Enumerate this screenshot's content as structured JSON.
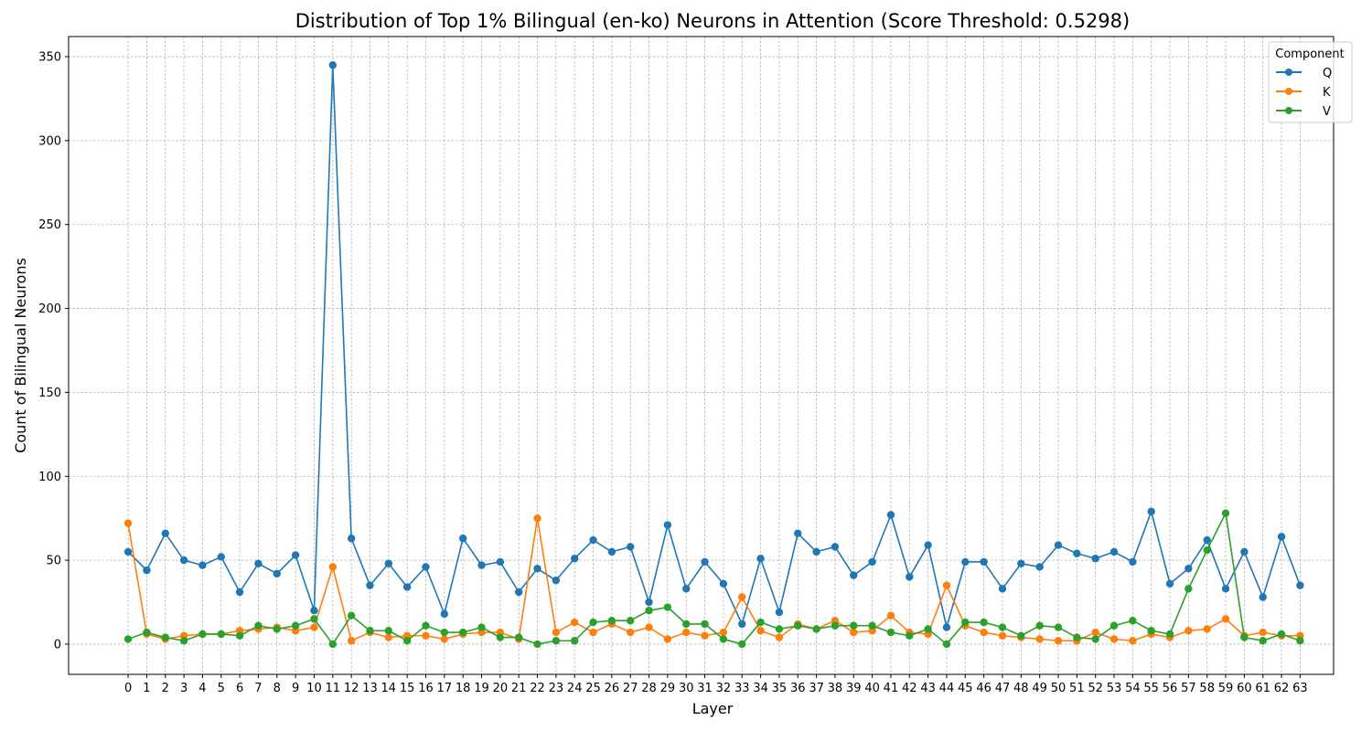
{
  "chart_data": {
    "type": "line",
    "title": "Distribution of Top 1% Bilingual (en-ko) Neurons in Attention (Score Threshold: 0.5298)",
    "xlabel": "Layer",
    "ylabel": "Count of Bilingual Neurons",
    "ylim": [
      -18,
      362
    ],
    "yticks": [
      0,
      50,
      100,
      150,
      200,
      250,
      300,
      350
    ],
    "grid": true,
    "legend": {
      "title": "Component",
      "position": "top-right"
    },
    "x": [
      0,
      1,
      2,
      3,
      4,
      5,
      6,
      7,
      8,
      9,
      10,
      11,
      12,
      13,
      14,
      15,
      16,
      17,
      18,
      19,
      20,
      21,
      22,
      23,
      24,
      25,
      26,
      27,
      28,
      29,
      30,
      31,
      32,
      33,
      34,
      35,
      36,
      37,
      38,
      39,
      40,
      41,
      42,
      43,
      44,
      45,
      46,
      47,
      48,
      49,
      50,
      51,
      52,
      53,
      54,
      55,
      56,
      57,
      58,
      59,
      60,
      61,
      62,
      63
    ],
    "series": [
      {
        "name": "Q",
        "color": "#1f77b4",
        "values": [
          55,
          44,
          66,
          50,
          47,
          52,
          31,
          48,
          42,
          53,
          20,
          345,
          63,
          35,
          48,
          34,
          46,
          18,
          63,
          47,
          49,
          31,
          45,
          38,
          51,
          62,
          55,
          58,
          25,
          71,
          33,
          49,
          36,
          12,
          51,
          19,
          66,
          55,
          58,
          41,
          49,
          77,
          40,
          59,
          10,
          49,
          49,
          33,
          48,
          46,
          59,
          54,
          51,
          55,
          49,
          79,
          36,
          45,
          62,
          33,
          55,
          28,
          64,
          35
        ]
      },
      {
        "name": "K",
        "color": "#ff7f0e",
        "values": [
          72,
          6,
          3,
          5,
          6,
          6,
          8,
          9,
          10,
          8,
          10,
          46,
          2,
          7,
          4,
          5,
          5,
          3,
          6,
          7,
          7,
          3,
          75,
          7,
          13,
          7,
          12,
          7,
          10,
          3,
          7,
          5,
          7,
          28,
          8,
          4,
          12,
          9,
          14,
          7,
          8,
          17,
          7,
          6,
          35,
          11,
          7,
          5,
          4,
          3,
          2,
          2,
          7,
          3,
          2,
          6,
          4,
          8,
          9,
          15,
          5,
          7,
          5,
          5
        ]
      },
      {
        "name": "V",
        "color": "#2ca02c",
        "values": [
          3,
          7,
          4,
          2,
          6,
          6,
          5,
          11,
          9,
          11,
          15,
          0,
          17,
          8,
          8,
          2,
          11,
          7,
          7,
          10,
          4,
          4,
          0,
          2,
          2,
          13,
          14,
          14,
          20,
          22,
          12,
          12,
          3,
          0,
          13,
          9,
          11,
          9,
          11,
          11,
          11,
          7,
          5,
          9,
          0,
          13,
          13,
          10,
          5,
          11,
          10,
          4,
          3,
          11,
          14,
          8,
          6,
          33,
          56,
          78,
          4,
          2,
          6,
          2
        ]
      }
    ]
  }
}
